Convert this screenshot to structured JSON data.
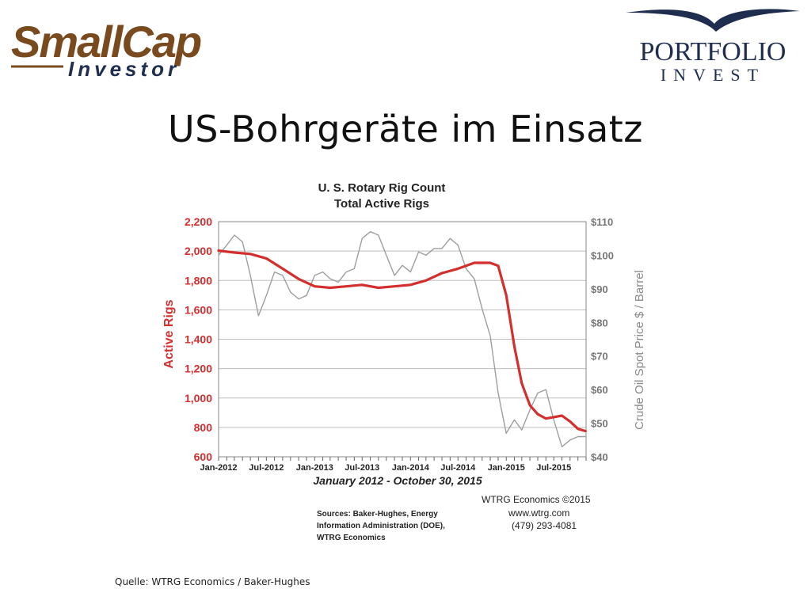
{
  "header": {
    "logo_left_main": "SmallCap",
    "logo_left_sub": "Investor",
    "logo_right_main": "PORTFOLIO",
    "logo_right_sub": "INVEST"
  },
  "slide": {
    "title": "US-Bohrgeräte im Einsatz",
    "caption": "Quelle: WTRG Economics / Baker-Hughes"
  },
  "colors": {
    "rigs": "#d32f2f",
    "oil": "#9e9e9e",
    "grid": "#bdbdbd",
    "logo_brown": "#7a4a1f",
    "logo_navy": "#1f2d4f"
  },
  "chart_data": {
    "type": "line",
    "title": "U. S. Rotary Rig Count",
    "subtitle": "Total Active Rigs",
    "xlabel": "January 2012 - October 30, 2015",
    "ylabel": "Active Rigs",
    "y2label": "Crude Oil Spot Price $ / Barrel",
    "xlim": [
      "2012-01",
      "2015-11"
    ],
    "ylim": [
      600,
      2200
    ],
    "y2lim": [
      40,
      110
    ],
    "x_tick_labels": [
      "Jan-2012",
      "Jul-2012",
      "Jan-2013",
      "Jul-2013",
      "Jan-2014",
      "Jul-2014",
      "Jan-2015",
      "Jul-2015"
    ],
    "y_tick_labels": [
      "600",
      "800",
      "1,000",
      "1,200",
      "1,400",
      "1,600",
      "1,800",
      "2,000",
      "2,200"
    ],
    "y2_tick_labels": [
      "$40",
      "$50",
      "$60",
      "$70",
      "$80",
      "$90",
      "$100",
      "$110"
    ],
    "grid": true,
    "series": [
      {
        "axis": "left",
        "points": [
          [
            "2012-01",
            2003
          ],
          [
            "2012-03",
            1990
          ],
          [
            "2012-05",
            1980
          ],
          [
            "2012-07",
            1950
          ],
          [
            "2012-09",
            1880
          ],
          [
            "2012-11",
            1810
          ],
          [
            "2013-01",
            1760
          ],
          [
            "2013-03",
            1750
          ],
          [
            "2013-05",
            1760
          ],
          [
            "2013-07",
            1770
          ],
          [
            "2013-09",
            1750
          ],
          [
            "2013-11",
            1760
          ],
          [
            "2014-01",
            1770
          ],
          [
            "2014-03",
            1800
          ],
          [
            "2014-05",
            1850
          ],
          [
            "2014-07",
            1880
          ],
          [
            "2014-09",
            1920
          ],
          [
            "2014-11",
            1920
          ],
          [
            "2014-12",
            1900
          ],
          [
            "2015-01",
            1700
          ],
          [
            "2015-02",
            1350
          ],
          [
            "2015-03",
            1100
          ],
          [
            "2015-04",
            950
          ],
          [
            "2015-05",
            890
          ],
          [
            "2015-06",
            860
          ],
          [
            "2015-07",
            870
          ],
          [
            "2015-08",
            880
          ],
          [
            "2015-09",
            840
          ],
          [
            "2015-10",
            790
          ],
          [
            "2015-10-30",
            775
          ]
        ]
      },
      {
        "axis": "right",
        "points": [
          [
            "2012-01",
            100
          ],
          [
            "2012-02",
            103
          ],
          [
            "2012-03",
            106
          ],
          [
            "2012-04",
            104
          ],
          [
            "2012-05",
            94
          ],
          [
            "2012-06",
            82
          ],
          [
            "2012-07",
            88
          ],
          [
            "2012-08",
            95
          ],
          [
            "2012-09",
            94
          ],
          [
            "2012-10",
            89
          ],
          [
            "2012-11",
            87
          ],
          [
            "2012-12",
            88
          ],
          [
            "2013-01",
            94
          ],
          [
            "2013-02",
            95
          ],
          [
            "2013-03",
            93
          ],
          [
            "2013-04",
            92
          ],
          [
            "2013-05",
            95
          ],
          [
            "2013-06",
            96
          ],
          [
            "2013-07",
            105
          ],
          [
            "2013-08",
            107
          ],
          [
            "2013-09",
            106
          ],
          [
            "2013-10",
            100
          ],
          [
            "2013-11",
            94
          ],
          [
            "2013-12",
            97
          ],
          [
            "2014-01",
            95
          ],
          [
            "2014-02",
            101
          ],
          [
            "2014-03",
            100
          ],
          [
            "2014-04",
            102
          ],
          [
            "2014-05",
            102
          ],
          [
            "2014-06",
            105
          ],
          [
            "2014-07",
            103
          ],
          [
            "2014-08",
            96
          ],
          [
            "2014-09",
            93
          ],
          [
            "2014-10",
            84
          ],
          [
            "2014-11",
            76
          ],
          [
            "2014-12",
            59
          ],
          [
            "2015-01",
            47
          ],
          [
            "2015-02",
            51
          ],
          [
            "2015-03",
            48
          ],
          [
            "2015-04",
            54
          ],
          [
            "2015-05",
            59
          ],
          [
            "2015-06",
            60
          ],
          [
            "2015-07",
            51
          ],
          [
            "2015-08",
            43
          ],
          [
            "2015-09",
            45
          ],
          [
            "2015-10",
            46
          ],
          [
            "2015-10-30",
            46
          ]
        ]
      }
    ],
    "source_note": [
      "Sources: Baker-Hughes, Energy",
      "Information Administration (DOE),",
      "WTRG Economics"
    ],
    "copyright": "WTRG Economics ©2015",
    "website": "www.wtrg.com",
    "phone": "(479) 293-4081"
  }
}
